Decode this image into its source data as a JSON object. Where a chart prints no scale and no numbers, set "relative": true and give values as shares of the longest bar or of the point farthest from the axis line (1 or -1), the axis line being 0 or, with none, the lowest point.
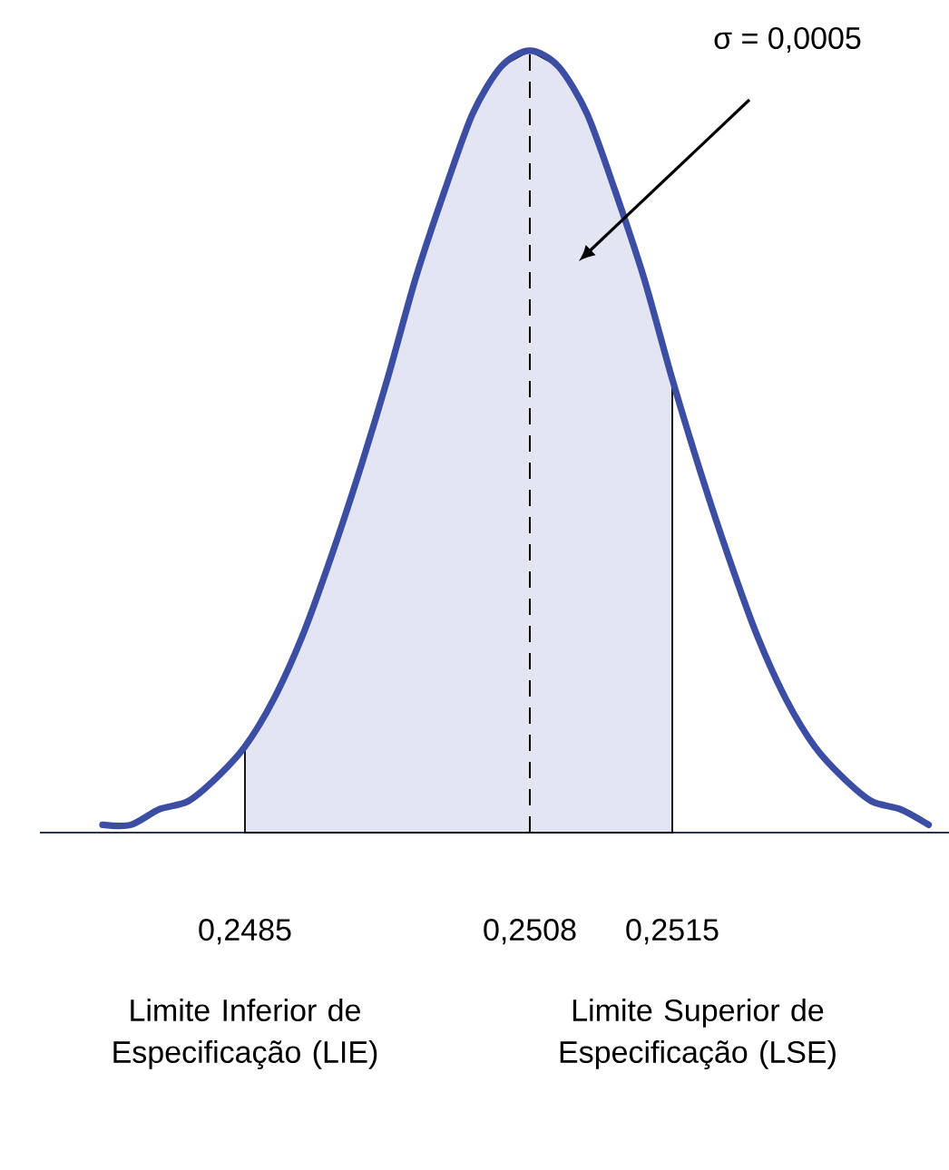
{
  "chart_data": {
    "type": "line",
    "relative": true,
    "tick_labels": "x",
    "categories": [
      null,
      null,
      null,
      null,
      null,
      "0,2485",
      null,
      null,
      null,
      null,
      null,
      null,
      null,
      null,
      null,
      "0,2508",
      null,
      null,
      null,
      null,
      "0,2515",
      null,
      null,
      null,
      null,
      null,
      null,
      null,
      null,
      null
    ],
    "series": [
      {
        "type": "area",
        "color": "#e4e5f2",
        "values": [
          null,
          null,
          null,
          null,
          null,
          0.11,
          0.17,
          0.25,
          0.35,
          0.46,
          0.58,
          0.71,
          0.82,
          0.92,
          0.98,
          1,
          0.98,
          0.92,
          0.82,
          0.71,
          0.58,
          null,
          null,
          null,
          null,
          null,
          null,
          null,
          null,
          null
        ]
      },
      {
        "type": "line",
        "color": "#3b4ea3",
        "values": [
          0.01,
          0.01,
          0.03,
          0.04,
          0.07,
          0.11,
          0.17,
          0.25,
          0.35,
          0.46,
          0.58,
          0.71,
          0.82,
          0.92,
          0.98,
          1,
          0.98,
          0.92,
          0.82,
          0.71,
          0.58,
          0.46,
          0.35,
          0.25,
          0.17,
          0.11,
          0.07,
          0.04,
          0.03,
          0.01
        ]
      }
    ],
    "ref_lines": [
      {
        "axis": "x",
        "value": "0,2508",
        "line_style": "dashed",
        "color": "#000000"
      }
    ],
    "annotations": [
      "Limite Inferior de Especificação (LIE)",
      "Limite Superior de Especificação (LSE)",
      "σ = 0,0005"
    ]
  }
}
